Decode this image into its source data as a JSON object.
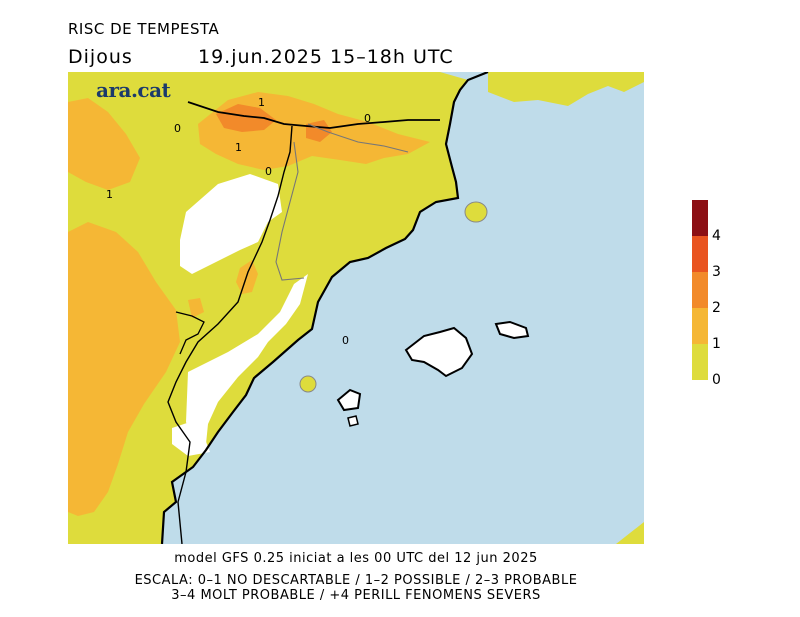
{
  "header": {
    "title": "RISC DE TEMPESTA",
    "day": "Dijous",
    "datetime": "19.jun.2025 15–18h UTC"
  },
  "brand": {
    "logo_text": "ara.cat"
  },
  "map": {
    "contour_labels": [
      "1",
      "0",
      "0",
      "1",
      "1",
      "0",
      "0"
    ],
    "colors": {
      "sea": "#bfdcea",
      "risk_0_1": "#dedc3c",
      "risk_1_2": "#f5b735",
      "risk_2_3": "#f28a2a",
      "risk_3_4": "#e95420",
      "risk_4_plus": "#8c0f14",
      "no_risk": "#ffffff"
    }
  },
  "legend": {
    "labels": [
      "0",
      "1",
      "2",
      "3",
      "4"
    ]
  },
  "footer": {
    "model_line": "model GFS 0.25 iniciat a les 00 UTC del 12 jun 2025",
    "scale_line1": "ESCALA: 0–1 NO DESCARTABLE / 1–2 POSSIBLE / 2–3 PROBABLE",
    "scale_line2": "3–4 MOLT PROBABLE / +4 PERILL FENOMENS SEVERS"
  }
}
